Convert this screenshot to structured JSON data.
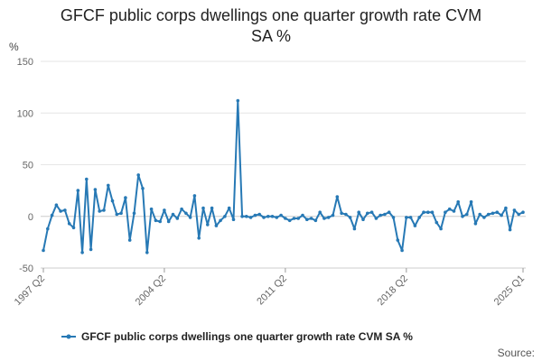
{
  "chart_data": {
    "type": "line",
    "title_line1": "GFCF public corps dwellings one quarter growth rate CVM",
    "title_line2": "SA %",
    "ylabel": "%",
    "ylim": [
      -50,
      150
    ],
    "y_ticks": [
      150,
      100,
      50,
      0,
      -50
    ],
    "x_tick_labels": [
      "1997 Q2",
      "2004 Q2",
      "2011 Q2",
      "2018 Q2",
      "2025 Q1"
    ],
    "x_start": "1997 Q2",
    "x_end": "2025 Q1",
    "grid": true,
    "legend_position": "bottom",
    "color": "#2779b5",
    "series": [
      {
        "name": "GFCF public corps dwellings one quarter growth rate CVM SA %",
        "values": [
          -33,
          -12,
          1,
          11,
          5,
          6,
          -7,
          -11,
          25,
          -35,
          36,
          -32,
          26,
          5,
          6,
          30,
          15,
          2,
          3,
          18,
          -23,
          3,
          40,
          27,
          -35,
          7,
          -4,
          -5,
          6,
          -5,
          2,
          -2,
          7,
          3,
          -1,
          20,
          -21,
          8,
          -8,
          8,
          -9,
          -4,
          0,
          8,
          -3,
          112,
          0,
          0,
          -1,
          1,
          2,
          -1,
          0,
          0,
          -1,
          1,
          -2,
          -4,
          -2,
          -2,
          1,
          -3,
          -2,
          -4,
          4,
          -2,
          -1,
          1,
          19,
          3,
          2,
          -1,
          -12,
          4,
          -3,
          3,
          4,
          -2,
          1,
          2,
          4,
          -1,
          -23,
          -33,
          -1,
          -1,
          -9,
          -1,
          4,
          4,
          4,
          -6,
          -12,
          4,
          7,
          5,
          14,
          0,
          2,
          14,
          -7,
          2,
          -1,
          2,
          3,
          4,
          1,
          8,
          -13,
          6,
          2,
          4
        ]
      }
    ]
  },
  "legend": {
    "label": "GFCF public corps dwellings one quarter growth rate CVM SA %"
  },
  "footer": {
    "source": "Source:"
  }
}
